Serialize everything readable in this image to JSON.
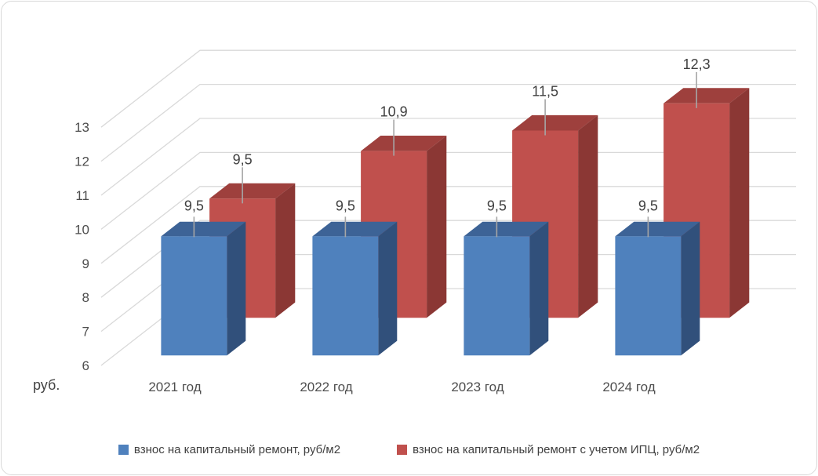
{
  "chart_data": {
    "type": "bar",
    "variant": "3d-column",
    "title": "",
    "ylabel": "руб.",
    "categories": [
      "2021 год",
      "2022 год",
      "2023 год",
      "2024 год"
    ],
    "series": [
      {
        "name": "взнос на капитальный ремонт, руб/м2",
        "values": [
          9.5,
          9.5,
          9.5,
          9.5
        ],
        "labels": [
          "9,5",
          "9,5",
          "9,5",
          "9,5"
        ],
        "colors": {
          "front": "#4f81bd",
          "top": "#3d6396",
          "side": "#31507b"
        }
      },
      {
        "name": "взнос на капитальный ремонт с учетом ИПЦ, руб/м2",
        "values": [
          9.5,
          10.9,
          11.5,
          12.3
        ],
        "labels": [
          "9,5",
          "10,9",
          "11,5",
          "12,3"
        ],
        "colors": {
          "front": "#c0504d",
          "top": "#9e403d",
          "side": "#8b3734"
        }
      }
    ],
    "yticks": [
      6,
      7,
      8,
      9,
      10,
      11,
      12,
      13
    ],
    "ylim": [
      6,
      13
    ],
    "grid": true,
    "legend_position": "bottom"
  },
  "style_colors": {
    "gridline": "#d9d9d9",
    "leader_line": "#a6a6a6",
    "tick_text": "#4d4d4d",
    "label_text": "#404040",
    "frame_border": "#d9d9d9"
  }
}
